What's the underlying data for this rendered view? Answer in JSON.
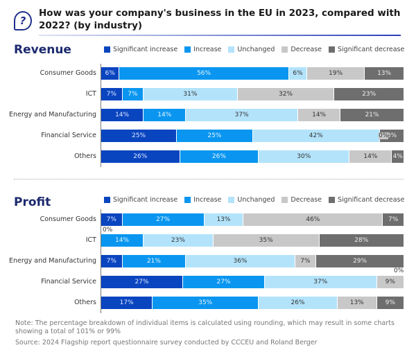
{
  "title": "How was your company's business in the EU in 2023, compared with 2022? (by industry)",
  "icon": "question-bubble-icon",
  "colors": {
    "Significant increase": "#0a45c0",
    "Increase": "#0a96f0",
    "Unchanged": "#b3e3fb",
    "Decrease": "#c8c8c8",
    "Significant decrease": "#6e6e6e"
  },
  "note": "Note: The percentage breakdown of individual items is calculated using rounding, which may result in some charts showing a total of 101% or 99%",
  "source": "Source: 2024 Flagship report questionnaire survey conducted by CCCEU and Roland Berger",
  "chart_data": [
    {
      "type": "bar",
      "orientation": "horizontal-stacked-100",
      "title": "Revenue",
      "legend_position": "top",
      "categories": [
        "Consumer Goods",
        "ICT",
        "Energy and Manufacturing",
        "Financial Service",
        "Others"
      ],
      "series": [
        {
          "name": "Significant increase",
          "values": [
            6,
            7,
            14,
            25,
            26
          ]
        },
        {
          "name": "Increase",
          "values": [
            56,
            7,
            14,
            25,
            26
          ]
        },
        {
          "name": "Unchanged",
          "values": [
            6,
            31,
            37,
            42,
            30
          ]
        },
        {
          "name": "Decrease",
          "values": [
            19,
            32,
            14,
            0,
            14
          ]
        },
        {
          "name": "Significant decrease",
          "values": [
            13,
            23,
            21,
            8,
            4
          ]
        }
      ],
      "unit": "%"
    },
    {
      "type": "bar",
      "orientation": "horizontal-stacked-100",
      "title": "Profit",
      "legend_position": "top",
      "categories": [
        "Consumer Goods",
        "ICT",
        "Energy and Manufacturing",
        "Financial Service",
        "Others"
      ],
      "series": [
        {
          "name": "Significant increase",
          "values": [
            7,
            0,
            7,
            27,
            17
          ]
        },
        {
          "name": "Increase",
          "values": [
            27,
            14,
            21,
            27,
            35
          ]
        },
        {
          "name": "Unchanged",
          "values": [
            13,
            23,
            36,
            37,
            26
          ]
        },
        {
          "name": "Decrease",
          "values": [
            46,
            35,
            7,
            9,
            13
          ]
        },
        {
          "name": "Significant decrease",
          "values": [
            7,
            28,
            29,
            0,
            9
          ]
        }
      ],
      "unit": "%"
    }
  ]
}
